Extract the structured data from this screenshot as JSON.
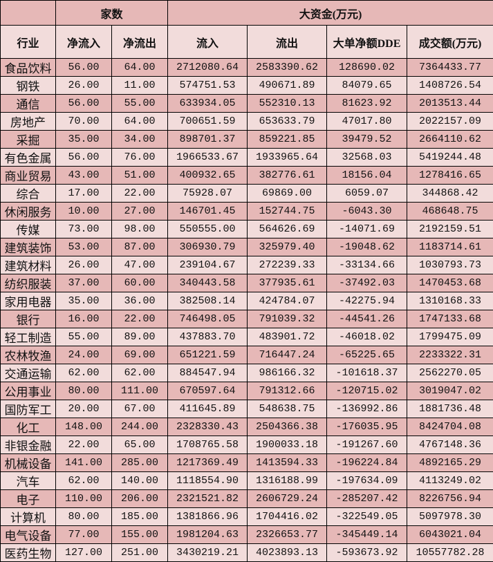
{
  "header": {
    "group_count": "家数",
    "group_funds": "大资金(万元)",
    "columns": [
      "行业",
      "净流入",
      "净流出",
      "流入",
      "流出",
      "大单净额DDE",
      "成交额(万元)"
    ]
  },
  "colors": {
    "dark_row": "#e6b8b7",
    "light_row": "#f2dcdb"
  },
  "rows": [
    [
      "食品饮料",
      "56.00",
      "64.00",
      "2712080.64",
      "2583390.62",
      "128690.02",
      "7364433.77"
    ],
    [
      "钢铁",
      "26.00",
      "11.00",
      "574751.53",
      "490671.89",
      "84079.65",
      "1408726.54"
    ],
    [
      "通信",
      "56.00",
      "55.00",
      "633934.05",
      "552310.13",
      "81623.92",
      "2013513.44"
    ],
    [
      "房地产",
      "70.00",
      "64.00",
      "700651.59",
      "653633.79",
      "47017.80",
      "2022157.09"
    ],
    [
      "采掘",
      "35.00",
      "34.00",
      "898701.37",
      "859221.85",
      "39479.52",
      "2664110.62"
    ],
    [
      "有色金属",
      "56.00",
      "76.00",
      "1966533.67",
      "1933965.64",
      "32568.03",
      "5419244.48"
    ],
    [
      "商业贸易",
      "43.00",
      "51.00",
      "400932.65",
      "382776.61",
      "18156.04",
      "1278416.65"
    ],
    [
      "综合",
      "17.00",
      "22.00",
      "75928.07",
      "69869.00",
      "6059.07",
      "344868.42"
    ],
    [
      "休闲服务",
      "10.00",
      "27.00",
      "146701.45",
      "152744.75",
      "-6043.30",
      "468648.75"
    ],
    [
      "传媒",
      "73.00",
      "98.00",
      "550555.00",
      "564626.69",
      "-14071.69",
      "2192159.51"
    ],
    [
      "建筑装饰",
      "53.00",
      "87.00",
      "306930.79",
      "325979.40",
      "-19048.62",
      "1183714.61"
    ],
    [
      "建筑材料",
      "26.00",
      "47.00",
      "239104.67",
      "272239.33",
      "-33134.66",
      "1030793.73"
    ],
    [
      "纺织服装",
      "37.00",
      "60.00",
      "340443.58",
      "377935.61",
      "-37492.03",
      "1470453.68"
    ],
    [
      "家用电器",
      "35.00",
      "36.00",
      "382508.14",
      "424784.07",
      "-42275.94",
      "1310168.33"
    ],
    [
      "银行",
      "16.00",
      "22.00",
      "746498.05",
      "791039.32",
      "-44541.26",
      "1747133.68"
    ],
    [
      "轻工制造",
      "55.00",
      "89.00",
      "437883.70",
      "483901.72",
      "-46018.02",
      "1799475.09"
    ],
    [
      "农林牧渔",
      "24.00",
      "69.00",
      "651221.59",
      "716447.24",
      "-65225.65",
      "2233322.31"
    ],
    [
      "交通运输",
      "62.00",
      "62.00",
      "884547.94",
      "986166.32",
      "-101618.37",
      "2562270.05"
    ],
    [
      "公用事业",
      "80.00",
      "111.00",
      "670597.64",
      "791312.66",
      "-120715.02",
      "3019047.02"
    ],
    [
      "国防军工",
      "20.00",
      "67.00",
      "411645.89",
      "548638.75",
      "-136992.86",
      "1881736.48"
    ],
    [
      "化工",
      "148.00",
      "244.00",
      "2328330.43",
      "2504366.38",
      "-176035.95",
      "8424704.08"
    ],
    [
      "非银金融",
      "22.00",
      "65.00",
      "1708765.58",
      "1900033.18",
      "-191267.60",
      "4767148.36"
    ],
    [
      "机械设备",
      "141.00",
      "285.00",
      "1217369.49",
      "1413594.33",
      "-196224.84",
      "4892165.29"
    ],
    [
      "汽车",
      "62.00",
      "140.00",
      "1118554.90",
      "1316188.99",
      "-197634.09",
      "4113249.02"
    ],
    [
      "电子",
      "110.00",
      "206.00",
      "2321521.82",
      "2606729.24",
      "-285207.42",
      "8226756.94"
    ],
    [
      "计算机",
      "80.00",
      "185.00",
      "1381866.96",
      "1704416.02",
      "-322549.05",
      "5097978.30"
    ],
    [
      "电气设备",
      "77.00",
      "155.00",
      "1981204.63",
      "2326653.77",
      "-345449.14",
      "6043021.04"
    ],
    [
      "医药生物",
      "127.00",
      "251.00",
      "3430219.21",
      "4023893.13",
      "-593673.92",
      "10557782.28"
    ]
  ]
}
